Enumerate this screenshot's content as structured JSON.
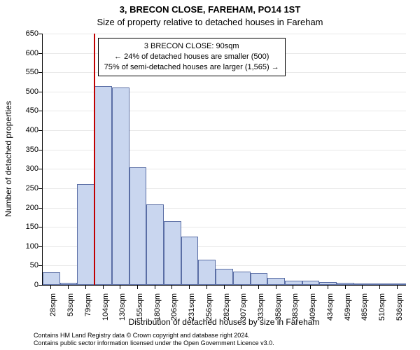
{
  "title_line1": "3, BRECON CLOSE, FAREHAM, PO14 1ST",
  "title_line2": "Size of property relative to detached houses in Fareham",
  "y_label": "Number of detached properties",
  "x_label": "Distribution of detached houses by size in Fareham",
  "footer_line1": "Contains HM Land Registry data © Crown copyright and database right 2024.",
  "footer_line2": "Contains public sector information licensed under the Open Government Licence v3.0.",
  "info_box": {
    "line1": "3 BRECON CLOSE: 90sqm",
    "line2": "← 24% of detached houses are smaller (500)",
    "line3": "75% of semi-detached houses are larger (1,565) →"
  },
  "chart": {
    "type": "histogram",
    "background_color": "#ffffff",
    "grid_color": "#e8e8e8",
    "bar_fill": "#c9d6ef",
    "bar_border": "#5a6ea5",
    "ref_line_color": "#c00000",
    "y": {
      "min": 0,
      "max": 650,
      "ticks": [
        0,
        50,
        100,
        150,
        200,
        250,
        300,
        350,
        400,
        450,
        500,
        550,
        600,
        650
      ]
    },
    "x": {
      "categories": [
        "28sqm",
        "53sqm",
        "79sqm",
        "104sqm",
        "130sqm",
        "155sqm",
        "180sqm",
        "206sqm",
        "231sqm",
        "256sqm",
        "282sqm",
        "307sqm",
        "333sqm",
        "358sqm",
        "383sqm",
        "409sqm",
        "434sqm",
        "459sqm",
        "485sqm",
        "510sqm",
        "536sqm"
      ]
    },
    "bars": [
      33,
      5,
      260,
      515,
      510,
      305,
      208,
      165,
      125,
      65,
      42,
      35,
      30,
      18,
      10,
      10,
      8,
      5,
      3,
      2,
      2
    ],
    "reference_x_value": 90,
    "x_numeric_min": 28,
    "x_numeric_step": 25.4,
    "title_fontsize": 13,
    "label_fontsize": 12,
    "tick_fontsize": 11,
    "info_fontsize": 11,
    "footer_fontsize": 9
  }
}
